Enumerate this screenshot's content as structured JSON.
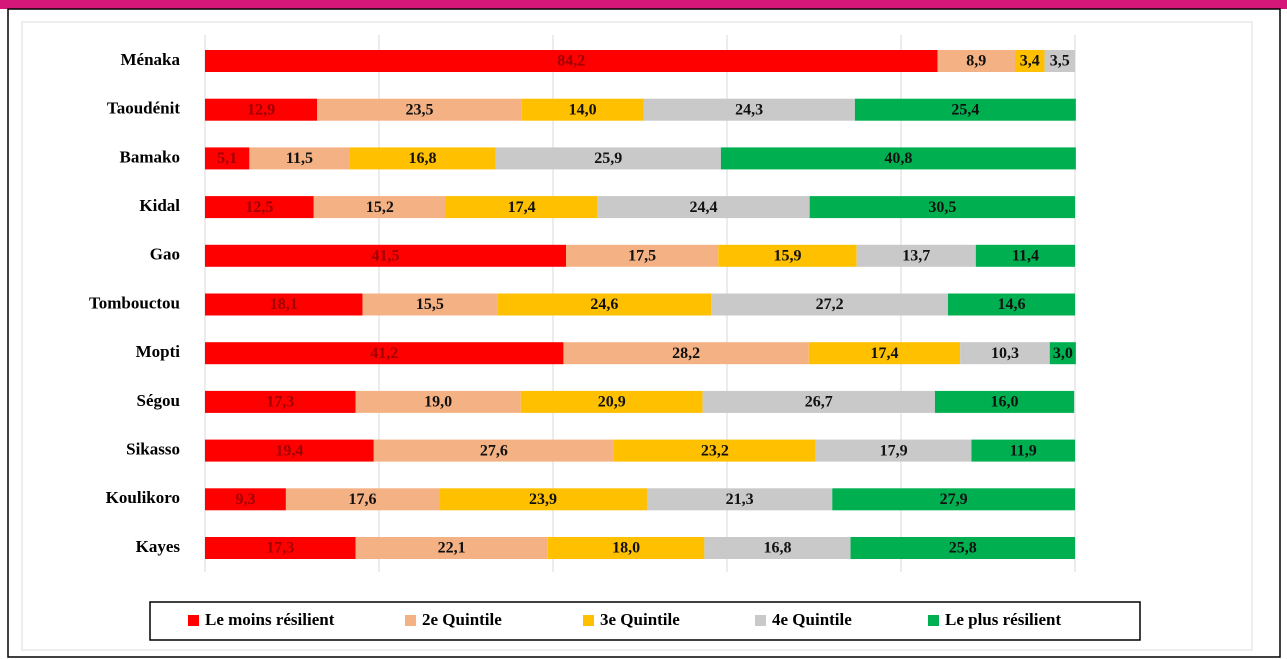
{
  "chart_data": {
    "type": "stacked-bar-horizontal",
    "categories": [
      "Ménaka",
      "Taoudénit",
      "Bamako",
      "Kidal",
      "Gao",
      "Tombouctou",
      "Mopti",
      "Ségou",
      "Sikasso",
      "Koulikoro",
      "Kayes"
    ],
    "series": [
      {
        "name": "Le moins résilient",
        "color": "#ff0000",
        "values": [
          84.2,
          12.9,
          5.1,
          12.5,
          41.5,
          18.1,
          41.2,
          17.3,
          19.4,
          9.3,
          17.3
        ],
        "value_labels": [
          "84,2",
          "12,9",
          "5,1",
          "12,5",
          "41,5",
          "18,1",
          "41,2",
          "17,3",
          "19,4",
          "9,3",
          "17,3"
        ]
      },
      {
        "name": "2e Quintile",
        "color": "#f4b183",
        "values": [
          8.9,
          23.5,
          11.5,
          15.2,
          17.5,
          15.5,
          28.2,
          19.0,
          27.6,
          17.6,
          22.1
        ],
        "value_labels": [
          "8,9",
          "23,5",
          "11,5",
          "15,2",
          "17,5",
          "15,5",
          "28,2",
          "19,0",
          "27,6",
          "17,6",
          "22,1"
        ]
      },
      {
        "name": "3e Quintile",
        "color": "#ffc000",
        "values": [
          3.4,
          14.0,
          16.8,
          17.4,
          15.9,
          24.6,
          17.4,
          20.9,
          23.2,
          23.9,
          18.0
        ],
        "value_labels": [
          "3,4",
          "14,0",
          "16,8",
          "17,4",
          "15,9",
          "24,6",
          "17,4",
          "20,9",
          "23,2",
          "23,9",
          "18,0"
        ]
      },
      {
        "name": "4e Quintile",
        "color": "#c9c9c9",
        "values": [
          3.5,
          24.3,
          25.9,
          24.4,
          13.7,
          27.2,
          10.3,
          26.7,
          17.9,
          21.3,
          16.8
        ],
        "value_labels": [
          "3,5",
          "24,3",
          "25,9",
          "24,4",
          "13,7",
          "27,2",
          "10,3",
          "26,7",
          "17,9",
          "21,3",
          "16,8"
        ]
      },
      {
        "name": "Le plus résilient",
        "color": "#00b050",
        "values": [
          null,
          25.4,
          40.8,
          30.5,
          11.4,
          14.6,
          3.0,
          16.0,
          11.9,
          27.9,
          25.8
        ],
        "value_labels": [
          null,
          "25,4",
          "40,8",
          "30,5",
          "11,4",
          "14,6",
          "3,0",
          "16,0",
          "11,9",
          "27,9",
          "25,8"
        ]
      }
    ],
    "xlim": [
      0,
      100
    ],
    "xticks": [
      0,
      20,
      40,
      60,
      80,
      100
    ],
    "grid": true
  }
}
